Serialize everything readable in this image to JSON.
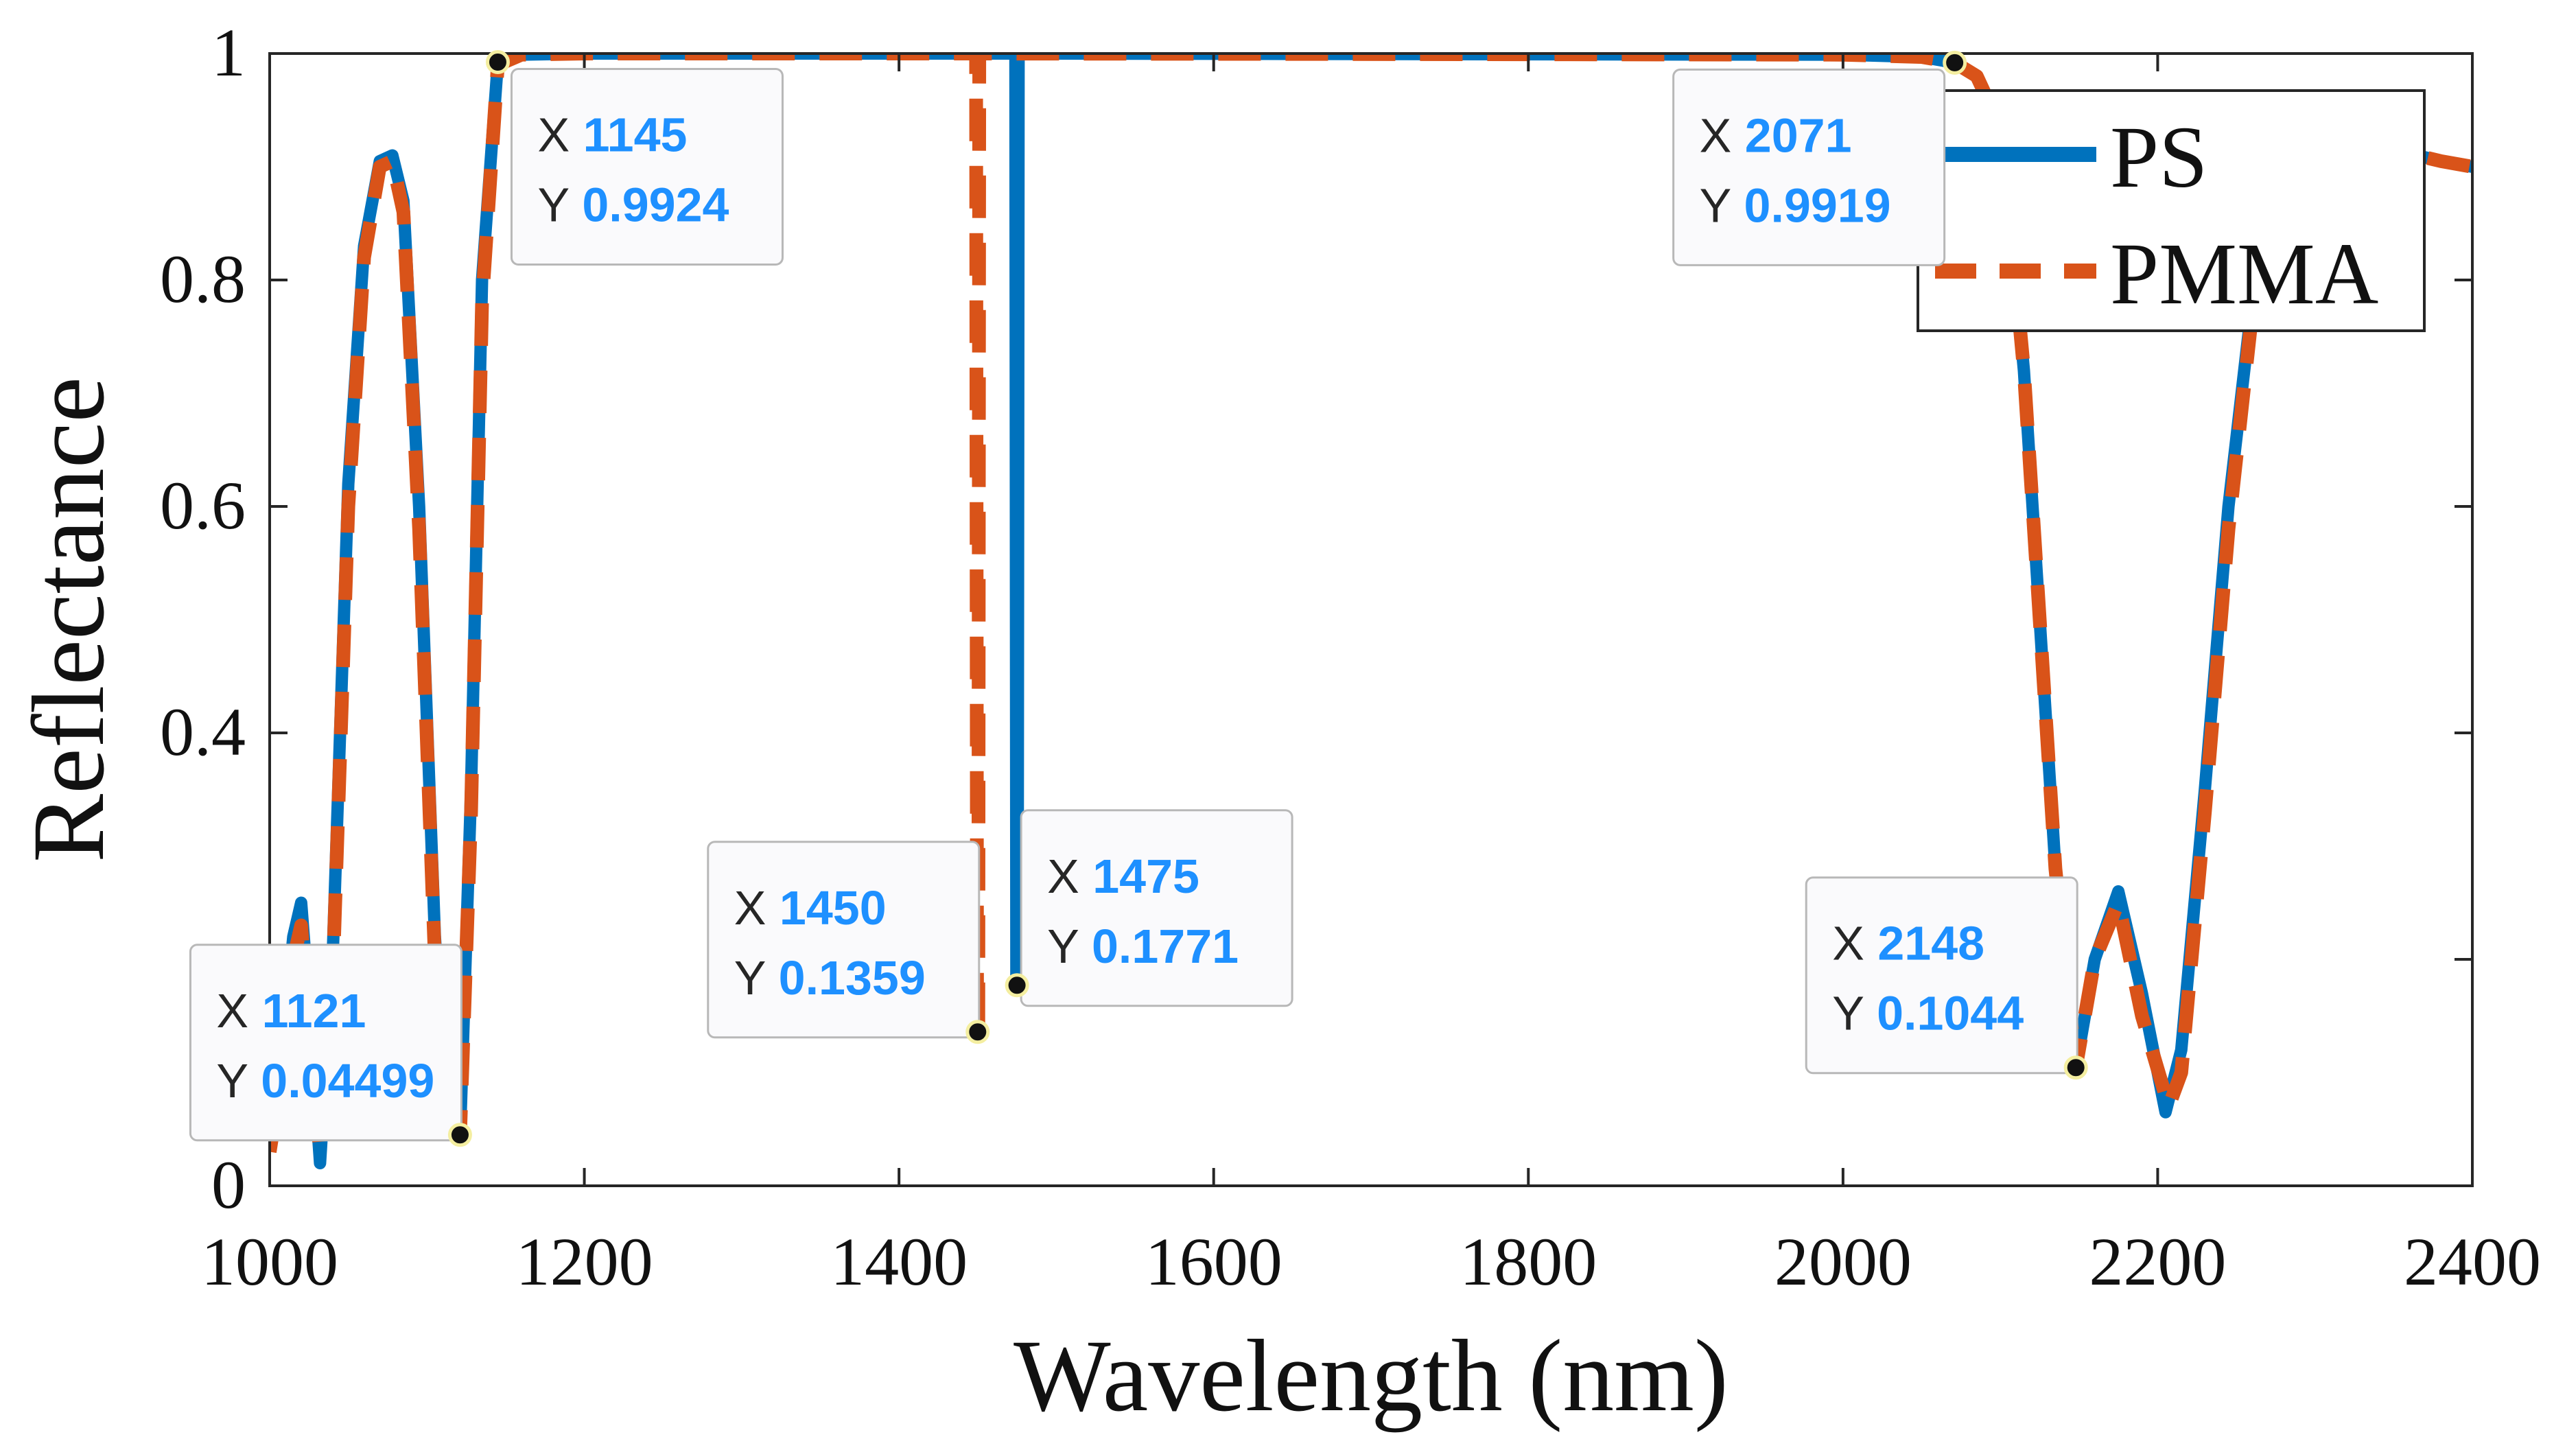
{
  "chart_data": {
    "type": "line",
    "xlabel": "Wavelength (nm)",
    "ylabel": "Reflectance",
    "xlim": [
      1000,
      2400
    ],
    "ylim": [
      0,
      1
    ],
    "xticks": [
      1000,
      1200,
      1400,
      1600,
      1800,
      2000,
      2200,
      2400
    ],
    "yticks": [
      0,
      0.2,
      0.4,
      0.6,
      0.8,
      1
    ],
    "ytick_labels": [
      "0",
      "",
      "0.4",
      "0.6",
      "0.8",
      "1"
    ],
    "grid": false,
    "legend_position": "top-right",
    "colors": {
      "PS": "#0072BD",
      "PMMA": "#D95319",
      "tip_value": "#1E90FF",
      "tip_text": "#262626"
    },
    "series": [
      {
        "name": "PS",
        "style": "solid",
        "points": [
          [
            1000,
            0.05
          ],
          [
            1008,
            0.12
          ],
          [
            1015,
            0.22
          ],
          [
            1020,
            0.25
          ],
          [
            1025,
            0.16
          ],
          [
            1032,
            0.02
          ],
          [
            1040,
            0.2
          ],
          [
            1050,
            0.62
          ],
          [
            1060,
            0.83
          ],
          [
            1070,
            0.905
          ],
          [
            1078,
            0.91
          ],
          [
            1085,
            0.87
          ],
          [
            1095,
            0.6
          ],
          [
            1105,
            0.22
          ],
          [
            1112,
            0.07
          ],
          [
            1121,
            0.04499
          ],
          [
            1128,
            0.35
          ],
          [
            1135,
            0.8
          ],
          [
            1145,
            0.9924
          ],
          [
            1160,
            0.999
          ],
          [
            1200,
            1.0
          ],
          [
            1474,
            1.0
          ],
          [
            1474.6,
            0.1771
          ],
          [
            1475.4,
            0.1771
          ],
          [
            1476,
            1.0
          ],
          [
            2000,
            0.999
          ],
          [
            2050,
            0.997
          ],
          [
            2071,
            0.9919
          ],
          [
            2085,
            0.98
          ],
          [
            2095,
            0.95
          ],
          [
            2105,
            0.87
          ],
          [
            2115,
            0.72
          ],
          [
            2125,
            0.5
          ],
          [
            2135,
            0.28
          ],
          [
            2148,
            0.1044
          ],
          [
            2160,
            0.2
          ],
          [
            2175,
            0.26
          ],
          [
            2190,
            0.17
          ],
          [
            2205,
            0.065
          ],
          [
            2215,
            0.12
          ],
          [
            2230,
            0.35
          ],
          [
            2245,
            0.6
          ],
          [
            2260,
            0.78
          ],
          [
            2275,
            0.86
          ],
          [
            2290,
            0.89
          ],
          [
            2320,
            0.92
          ],
          [
            2350,
            0.915
          ],
          [
            2380,
            0.905
          ],
          [
            2400,
            0.9
          ]
        ]
      },
      {
        "name": "PMMA",
        "style": "dashed",
        "points": [
          [
            1000,
            0.03
          ],
          [
            1008,
            0.1
          ],
          [
            1015,
            0.2
          ],
          [
            1020,
            0.23
          ],
          [
            1025,
            0.14
          ],
          [
            1032,
            0.03
          ],
          [
            1040,
            0.18
          ],
          [
            1050,
            0.6
          ],
          [
            1060,
            0.82
          ],
          [
            1070,
            0.9
          ],
          [
            1078,
            0.905
          ],
          [
            1085,
            0.86
          ],
          [
            1095,
            0.58
          ],
          [
            1105,
            0.2
          ],
          [
            1112,
            0.06
          ],
          [
            1121,
            0.045
          ],
          [
            1128,
            0.33
          ],
          [
            1135,
            0.78
          ],
          [
            1145,
            0.99
          ],
          [
            1160,
            0.999
          ],
          [
            1200,
            1.0
          ],
          [
            1449,
            1.0
          ],
          [
            1449.6,
            0.1359
          ],
          [
            1450.4,
            0.1359
          ],
          [
            1451,
            1.0
          ],
          [
            2000,
            0.999
          ],
          [
            2050,
            0.997
          ],
          [
            2071,
            0.9919
          ],
          [
            2085,
            0.98
          ],
          [
            2095,
            0.95
          ],
          [
            2105,
            0.87
          ],
          [
            2115,
            0.72
          ],
          [
            2125,
            0.5
          ],
          [
            2135,
            0.28
          ],
          [
            2148,
            0.1044
          ],
          [
            2160,
            0.2
          ],
          [
            2175,
            0.25
          ],
          [
            2190,
            0.15
          ],
          [
            2207,
            0.07
          ],
          [
            2215,
            0.1
          ],
          [
            2230,
            0.33
          ],
          [
            2245,
            0.58
          ],
          [
            2260,
            0.77
          ],
          [
            2275,
            0.86
          ],
          [
            2290,
            0.89
          ],
          [
            2320,
            0.92
          ],
          [
            2350,
            0.915
          ],
          [
            2380,
            0.905
          ],
          [
            2400,
            0.9
          ]
        ]
      }
    ],
    "datatips": [
      {
        "id": "tip-1121",
        "x_label": "X",
        "y_label": "Y",
        "x": 1121,
        "y": 0.04499,
        "x_text": "1121",
        "y_text": "0.04499",
        "anchor": "upper-left"
      },
      {
        "id": "tip-1145",
        "x_label": "X",
        "y_label": "Y",
        "x": 1145,
        "y": 0.9924,
        "x_text": "1145",
        "y_text": "0.9924",
        "anchor": "lower-right"
      },
      {
        "id": "tip-1450",
        "x_label": "X",
        "y_label": "Y",
        "x": 1450,
        "y": 0.1359,
        "x_text": "1450",
        "y_text": "0.1359",
        "anchor": "upper-left"
      },
      {
        "id": "tip-1475",
        "x_label": "X",
        "y_label": "Y",
        "x": 1475,
        "y": 0.1771,
        "x_text": "1475",
        "y_text": "0.1771",
        "anchor": "upper-right"
      },
      {
        "id": "tip-2071",
        "x_label": "X",
        "y_label": "Y",
        "x": 2071,
        "y": 0.9919,
        "x_text": "2071",
        "y_text": "0.9919",
        "anchor": "lower-left"
      },
      {
        "id": "tip-2148",
        "x_label": "X",
        "y_label": "Y",
        "x": 2148,
        "y": 0.1044,
        "x_text": "2148",
        "y_text": "0.1044",
        "anchor": "upper-left"
      }
    ]
  }
}
